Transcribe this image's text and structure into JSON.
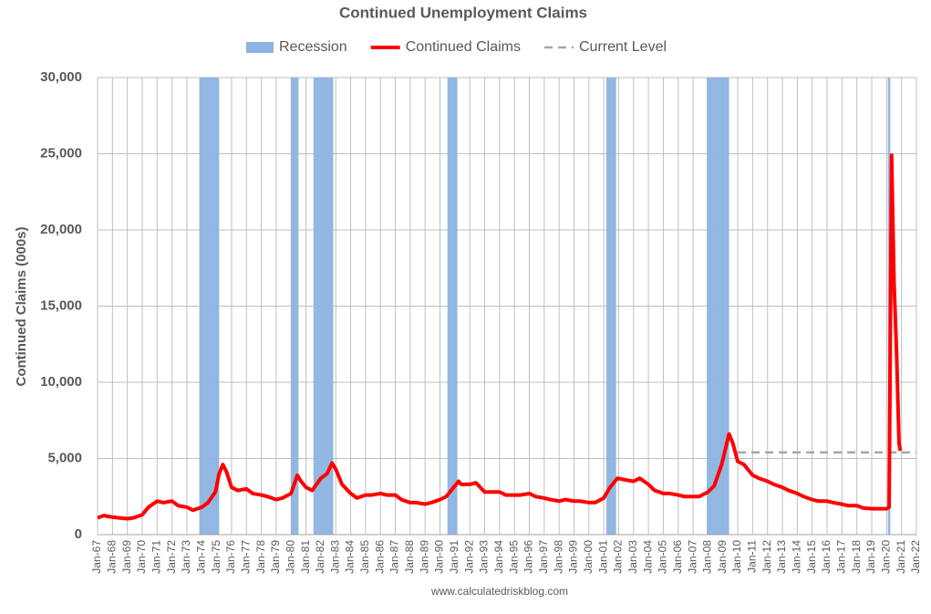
{
  "chart_data": {
    "type": "line",
    "title": "Continued Unemployment Claims",
    "ylabel": "Continued Claims (000s)",
    "footer": "www.calculatedriskblog.com",
    "ylim": [
      0,
      30000
    ],
    "yticks": [
      0,
      {
        "value": 5000,
        "label": "5,000"
      },
      {
        "value": 10000,
        "label": "10,000"
      },
      {
        "value": 15000,
        "label": "15,000"
      },
      {
        "value": 20000,
        "label": "20,000"
      },
      {
        "value": 25000,
        "label": "25,000"
      },
      {
        "value": 30000,
        "label": "30,000"
      }
    ],
    "xlim": [
      "1967-01",
      "2022-01"
    ],
    "xticks": [
      {
        "value": "1967-01",
        "label": "Jan-67"
      },
      {
        "value": "1968-01",
        "label": "Jan-68"
      },
      {
        "value": "1969-01",
        "label": "Jan-69"
      },
      {
        "value": "1970-01",
        "label": "Jan-70"
      },
      {
        "value": "1971-01",
        "label": "Jan-71"
      },
      {
        "value": "1972-01",
        "label": "Jan-72"
      },
      {
        "value": "1973-01",
        "label": "Jan-73"
      },
      {
        "value": "1974-01",
        "label": "Jan-74"
      },
      {
        "value": "1975-01",
        "label": "Jan-75"
      },
      {
        "value": "1976-01",
        "label": "Jan-76"
      },
      {
        "value": "1977-01",
        "label": "Jan-77"
      },
      {
        "value": "1978-01",
        "label": "Jan-78"
      },
      {
        "value": "1979-01",
        "label": "Jan-79"
      },
      {
        "value": "1980-01",
        "label": "Jan-80"
      },
      {
        "value": "1981-01",
        "label": "Jan-81"
      },
      {
        "value": "1982-01",
        "label": "Jan-82"
      },
      {
        "value": "1983-01",
        "label": "Jan-83"
      },
      {
        "value": "1984-01",
        "label": "Jan-84"
      },
      {
        "value": "1985-01",
        "label": "Jan-85"
      },
      {
        "value": "1986-01",
        "label": "Jan-86"
      },
      {
        "value": "1987-01",
        "label": "Jan-87"
      },
      {
        "value": "1988-01",
        "label": "Jan-88"
      },
      {
        "value": "1989-01",
        "label": "Jan-89"
      },
      {
        "value": "1990-01",
        "label": "Jan-90"
      },
      {
        "value": "1991-01",
        "label": "Jan-91"
      },
      {
        "value": "1992-01",
        "label": "Jan-92"
      },
      {
        "value": "1993-01",
        "label": "Jan-93"
      },
      {
        "value": "1994-01",
        "label": "Jan-94"
      },
      {
        "value": "1995-01",
        "label": "Jan-95"
      },
      {
        "value": "1996-01",
        "label": "Jan-96"
      },
      {
        "value": "1997-01",
        "label": "Jan-97"
      },
      {
        "value": "1998-01",
        "label": "Jan-98"
      },
      {
        "value": "1999-01",
        "label": "Jan-99"
      },
      {
        "value": "2000-01",
        "label": "Jan-00"
      },
      {
        "value": "2001-01",
        "label": "Jan-01"
      },
      {
        "value": "2002-01",
        "label": "Jan-02"
      },
      {
        "value": "2003-01",
        "label": "Jan-03"
      },
      {
        "value": "2004-01",
        "label": "Jan-04"
      },
      {
        "value": "2005-01",
        "label": "Jan-05"
      },
      {
        "value": "2006-01",
        "label": "Jan-06"
      },
      {
        "value": "2007-01",
        "label": "Jan-07"
      },
      {
        "value": "2008-01",
        "label": "Jan-08"
      },
      {
        "value": "2009-01",
        "label": "Jan-09"
      },
      {
        "value": "2010-01",
        "label": "Jan-10"
      },
      {
        "value": "2011-01",
        "label": "Jan-11"
      },
      {
        "value": "2012-01",
        "label": "Jan-12"
      },
      {
        "value": "2013-01",
        "label": "Jan-13"
      },
      {
        "value": "2014-01",
        "label": "Jan-14"
      },
      {
        "value": "2015-01",
        "label": "Jan-15"
      },
      {
        "value": "2016-01",
        "label": "Jan-16"
      },
      {
        "value": "2017-01",
        "label": "Jan-17"
      },
      {
        "value": "2018-01",
        "label": "Jan-18"
      },
      {
        "value": "2019-01",
        "label": "Jan-19"
      },
      {
        "value": "2020-01",
        "label": "Jan-20"
      },
      {
        "value": "2021-01",
        "label": "Jan-21"
      },
      {
        "value": "2022-01",
        "label": "Jan-22"
      }
    ],
    "grid": true,
    "recessions": {
      "name": "Recession",
      "color": "#8db3e2",
      "periods": [
        [
          "1973-11",
          "1975-03"
        ],
        [
          "1980-01",
          "1980-07"
        ],
        [
          "1981-07",
          "1982-11"
        ],
        [
          "1990-07",
          "1991-03"
        ],
        [
          "2001-03",
          "2001-11"
        ],
        [
          "2007-12",
          "2009-06"
        ],
        [
          "2020-02",
          "2020-04"
        ]
      ]
    },
    "series": [
      {
        "name": "Continued Claims",
        "color": "#ff0000",
        "x": [
          "1967-01",
          "1967-06",
          "1968-01",
          "1968-06",
          "1969-01",
          "1969-06",
          "1970-01",
          "1970-06",
          "1971-01",
          "1971-06",
          "1972-01",
          "1972-06",
          "1973-01",
          "1973-06",
          "1974-01",
          "1974-06",
          "1974-12",
          "1975-03",
          "1975-06",
          "1975-09",
          "1976-01",
          "1976-06",
          "1977-01",
          "1977-06",
          "1978-01",
          "1978-06",
          "1979-01",
          "1979-06",
          "1980-01",
          "1980-06",
          "1980-09",
          "1981-01",
          "1981-06",
          "1982-01",
          "1982-06",
          "1982-10",
          "1983-01",
          "1983-06",
          "1984-01",
          "1984-06",
          "1985-01",
          "1985-06",
          "1986-01",
          "1986-06",
          "1987-01",
          "1987-06",
          "1988-01",
          "1988-06",
          "1989-01",
          "1989-06",
          "1990-01",
          "1990-06",
          "1991-01",
          "1991-04",
          "1991-06",
          "1992-01",
          "1992-06",
          "1993-01",
          "1993-06",
          "1994-01",
          "1994-06",
          "1995-01",
          "1995-06",
          "1996-01",
          "1996-06",
          "1997-01",
          "1997-06",
          "1998-01",
          "1998-06",
          "1999-01",
          "1999-06",
          "2000-01",
          "2000-06",
          "2001-01",
          "2001-06",
          "2001-12",
          "2002-06",
          "2003-01",
          "2003-06",
          "2004-01",
          "2004-06",
          "2005-01",
          "2005-06",
          "2006-01",
          "2006-06",
          "2007-01",
          "2007-06",
          "2008-01",
          "2008-06",
          "2008-12",
          "2009-06",
          "2009-09",
          "2010-01",
          "2010-06",
          "2011-01",
          "2011-06",
          "2012-01",
          "2012-06",
          "2013-01",
          "2013-06",
          "2014-01",
          "2014-06",
          "2015-01",
          "2015-06",
          "2016-01",
          "2016-06",
          "2017-01",
          "2017-06",
          "2018-01",
          "2018-06",
          "2019-01",
          "2019-06",
          "2020-01",
          "2020-03",
          "2020-05",
          "2020-07",
          "2020-09",
          "2020-11",
          "2020-12"
        ],
        "values": [
          1100,
          1250,
          1150,
          1100,
          1050,
          1100,
          1300,
          1800,
          2200,
          2100,
          2200,
          1900,
          1800,
          1600,
          1800,
          2100,
          2800,
          4000,
          4600,
          4100,
          3100,
          2900,
          3000,
          2700,
          2600,
          2500,
          2300,
          2400,
          2700,
          3900,
          3500,
          3100,
          2900,
          3700,
          4000,
          4700,
          4300,
          3300,
          2700,
          2400,
          2600,
          2600,
          2700,
          2600,
          2600,
          2300,
          2100,
          2100,
          2000,
          2100,
          2300,
          2500,
          3200,
          3500,
          3300,
          3300,
          3400,
          2800,
          2800,
          2800,
          2600,
          2600,
          2600,
          2700,
          2500,
          2400,
          2300,
          2200,
          2300,
          2200,
          2200,
          2100,
          2100,
          2400,
          3100,
          3700,
          3600,
          3500,
          3700,
          3300,
          2900,
          2700,
          2700,
          2600,
          2500,
          2500,
          2500,
          2800,
          3200,
          4600,
          6600,
          6000,
          4800,
          4600,
          3900,
          3700,
          3500,
          3300,
          3100,
          2900,
          2700,
          2500,
          2300,
          2200,
          2200,
          2100,
          2000,
          1900,
          1900,
          1750,
          1700,
          1700,
          1700,
          1800,
          24900,
          16500,
          12000,
          6000,
          5500
        ]
      },
      {
        "name": "Current Level",
        "color": "#a6a6a6",
        "dash": true,
        "x": [
          "2010-01",
          "2022-01"
        ],
        "values": [
          5400,
          5400
        ]
      }
    ]
  }
}
